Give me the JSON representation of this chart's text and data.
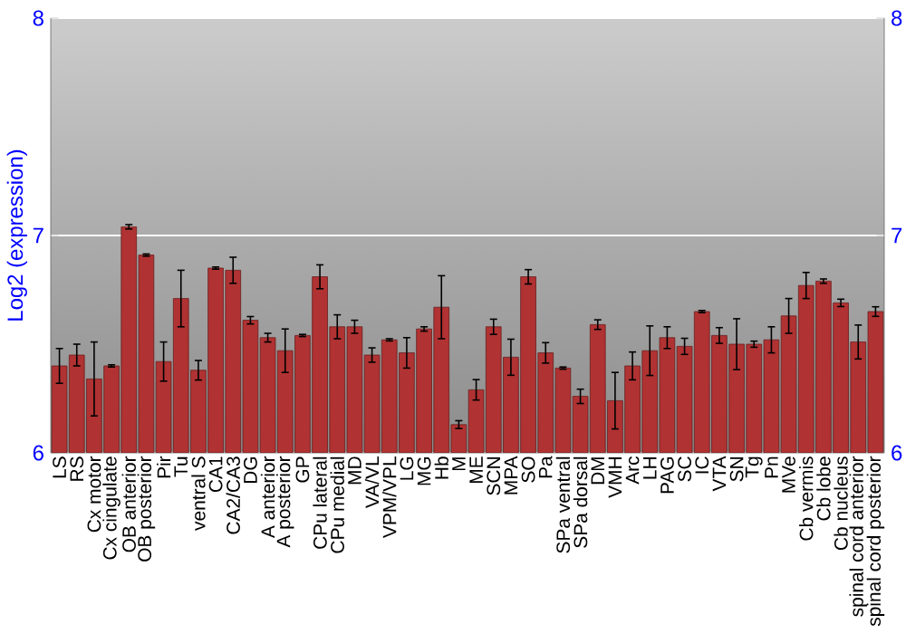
{
  "chart_data": {
    "type": "bar",
    "ylabel": "Log2 (expression)",
    "categories": [
      "LS",
      "RS",
      "Cx motor",
      "Cx cingulate",
      "OB anterior",
      "OB posterior",
      "Pir",
      "Tu",
      "ventral S",
      "CA1",
      "CA2/CA3",
      "DG",
      "A anterior",
      "A posterior",
      "GP",
      "CPu lateral",
      "CPu medial",
      "MD",
      "VA/VL",
      "VPM/VPL",
      "LG",
      "MG",
      "Hb",
      "M",
      "ME",
      "SCN",
      "MPA",
      "SO",
      "Pa",
      "SPa ventral",
      "SPa dorsal",
      "DM",
      "VMH",
      "Arc",
      "LH",
      "PAG",
      "SC",
      "IC",
      "VTA",
      "SN",
      "Tg",
      "Pn",
      "MVe",
      "Cb vermis",
      "Cb lobe",
      "Cb nucleus",
      "spinal cord anterior",
      "spinal cord posterior"
    ],
    "values": [
      6.4,
      6.45,
      6.34,
      6.4,
      7.04,
      6.91,
      6.42,
      6.71,
      6.38,
      6.85,
      6.84,
      6.61,
      6.53,
      6.47,
      6.54,
      6.81,
      6.58,
      6.58,
      6.45,
      6.52,
      6.46,
      6.57,
      6.67,
      6.13,
      6.29,
      6.58,
      6.44,
      6.81,
      6.46,
      6.39,
      6.26,
      6.59,
      6.24,
      6.4,
      6.47,
      6.53,
      6.49,
      6.65,
      6.54,
      6.5,
      6.5,
      6.52,
      6.63,
      6.77,
      6.79,
      6.69,
      6.51,
      6.65
    ],
    "errors": [
      0.08,
      0.05,
      0.17,
      0.005,
      0.01,
      0.005,
      0.09,
      0.13,
      0.045,
      0.005,
      0.06,
      0.017,
      0.02,
      0.1,
      0.005,
      0.055,
      0.055,
      0.03,
      0.033,
      0.005,
      0.07,
      0.01,
      0.145,
      0.018,
      0.047,
      0.035,
      0.083,
      0.033,
      0.047,
      0.005,
      0.033,
      0.022,
      0.13,
      0.064,
      0.114,
      0.05,
      0.037,
      0.005,
      0.036,
      0.117,
      0.014,
      0.06,
      0.08,
      0.06,
      0.01,
      0.017,
      0.078,
      0.022
    ],
    "color": "#b03232",
    "ylim": [
      6,
      8
    ],
    "yticks": [
      6,
      7,
      8
    ],
    "y2lim": [
      6,
      8
    ],
    "y2ticks": [
      6,
      7,
      8
    ],
    "grid": "y"
  }
}
